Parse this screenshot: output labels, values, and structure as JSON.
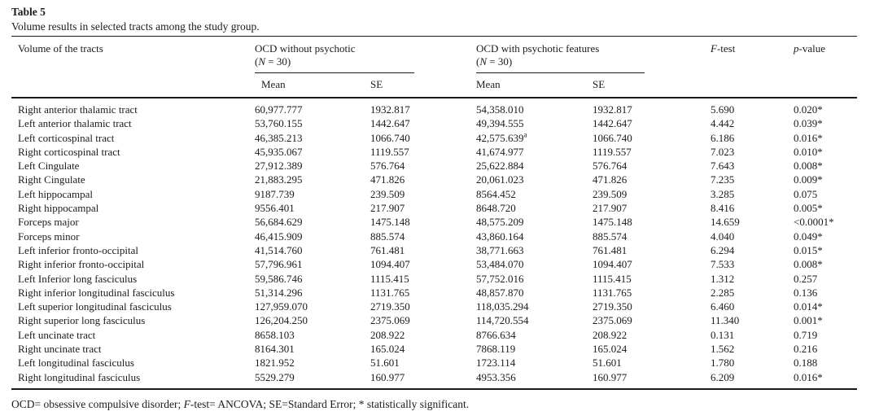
{
  "page": {
    "background": "#ffffff",
    "text_color": "#1b1b1b"
  },
  "table5": {
    "label": "Table 5",
    "caption": "Volume results in selected tracts among the study group.",
    "header": {
      "col1": "Volume of the tracts",
      "group1_line1": "OCD without psychotic",
      "group2_line1": "OCD with psychotic features",
      "n_open": "(",
      "n_italic": "N",
      "n_rest": " = 30)",
      "mean": "Mean",
      "se": "SE",
      "ftest_italic": "F",
      "ftest_rest": "-test",
      "pvalue_italic": "p",
      "pvalue_rest": "-value"
    },
    "rows": [
      {
        "tract": "Right anterior thalamic tract",
        "mean1": "60,977.777",
        "se1": "1932.817",
        "mean2": "54,358.010",
        "se2": "1932.817",
        "f": "5.690",
        "p": "0.020*"
      },
      {
        "tract": "Left anterior thalamic tract",
        "mean1": "53,760.155",
        "se1": "1442.647",
        "mean2": "49,394.555",
        "se2": "1442.647",
        "f": "4.442",
        "p": "0.039*"
      },
      {
        "tract": "Left corticospinal tract",
        "mean1": "46,385.213",
        "se1": "1066.740",
        "mean2": "42,575.639",
        "mean2_sup": "a",
        "se2": "1066.740",
        "f": "6.186",
        "p": "0.016*"
      },
      {
        "tract": "Right corticospinal tract",
        "mean1": "45,935.067",
        "se1": "1119.557",
        "mean2": "41,674.977",
        "se2": "1119.557",
        "f": "7.023",
        "p": "0.010*"
      },
      {
        "tract": "Left Cingulate",
        "mean1": "27,912.389",
        "se1": "576.764",
        "mean2": "25,622.884",
        "se2": "576.764",
        "f": "7.643",
        "p": "0.008*"
      },
      {
        "tract": "Right Cingulate",
        "mean1": "21,883.295",
        "se1": "471.826",
        "mean2": "20,061.023",
        "se2": "471.826",
        "f": "7.235",
        "p": "0.009*"
      },
      {
        "tract": "Left hippocampal",
        "mean1": "9187.739",
        "se1": "239.509",
        "mean2": "8564.452",
        "se2": "239.509",
        "f": "3.285",
        "p": "0.075"
      },
      {
        "tract": "Right hippocampal",
        "mean1": "9556.401",
        "se1": "217.907",
        "mean2": "8648.720",
        "se2": "217.907",
        "f": "8.416",
        "p": "0.005*"
      },
      {
        "tract": "Forceps major",
        "mean1": "56,684.629",
        "se1": "1475.148",
        "mean2": "48,575.209",
        "se2": "1475.148",
        "f": "14.659",
        "p": "<0.0001*"
      },
      {
        "tract": "Forceps minor",
        "mean1": "46,415.909",
        "se1": "885.574",
        "mean2": "43,860.164",
        "se2": "885.574",
        "f": "4.040",
        "p": "0.049*"
      },
      {
        "tract": "Left inferior fronto-occipital",
        "mean1": "41,514.760",
        "se1": "761.481",
        "mean2": "38,771.663",
        "se2": "761.481",
        "f": "6.294",
        "p": "0.015*"
      },
      {
        "tract": "Right inferior fronto-occipital",
        "mean1": "57,796.961",
        "se1": "1094.407",
        "mean2": "53,484.070",
        "se2": "1094.407",
        "f": "7.533",
        "p": "0.008*"
      },
      {
        "tract": "Left Inferior long fasciculus",
        "mean1": "59,586.746",
        "se1": "1115.415",
        "mean2": "57,752.016",
        "se2": "1115.415",
        "f": "1.312",
        "p": "0.257"
      },
      {
        "tract": "Right inferior longitudinal fasciculus",
        "mean1": "51,314.296",
        "se1": "1131.765",
        "mean2": "48,857.870",
        "se2": "1131.765",
        "f": "2.285",
        "p": "0.136"
      },
      {
        "tract": "Left superior longitudinal fasciculus",
        "mean1": "127,959.070",
        "se1": "2719.350",
        "mean2": "118,035.294",
        "se2": "2719.350",
        "f": "6.460",
        "p": "0.014*"
      },
      {
        "tract": "Right superior long fasciculus",
        "mean1": "126,204.250",
        "se1": "2375.069",
        "mean2": "114,720.554",
        "se2": "2375.069",
        "f": "11.340",
        "p": "0.001*"
      },
      {
        "tract": "Left uncinate tract",
        "mean1": "8658.103",
        "se1": "208.922",
        "mean2": "8766.634",
        "se2": "208.922",
        "f": "0.131",
        "p": "0.719"
      },
      {
        "tract": "Right uncinate tract",
        "mean1": "8164.301",
        "se1": "165.024",
        "mean2": "7868.119",
        "se2": "165.024",
        "f": "1.562",
        "p": "0.216"
      },
      {
        "tract": "Left longitudinal fasciculus",
        "mean1": "1821.952",
        "se1": "51.601",
        "mean2": "1723.114",
        "se2": "51.601",
        "f": "1.780",
        "p": "0.188"
      },
      {
        "tract": "Right longitudinal fasciculus",
        "mean1": "5529.279",
        "se1": "160.977",
        "mean2": "4953.356",
        "se2": "160.977",
        "f": "6.209",
        "p": "0.016*"
      }
    ],
    "footnote": {
      "pre": "OCD= obsessive compulsive disorder; ",
      "italic": "F",
      "post": "-test= ANCOVA; SE=Standard Error; * statistically significant."
    }
  }
}
